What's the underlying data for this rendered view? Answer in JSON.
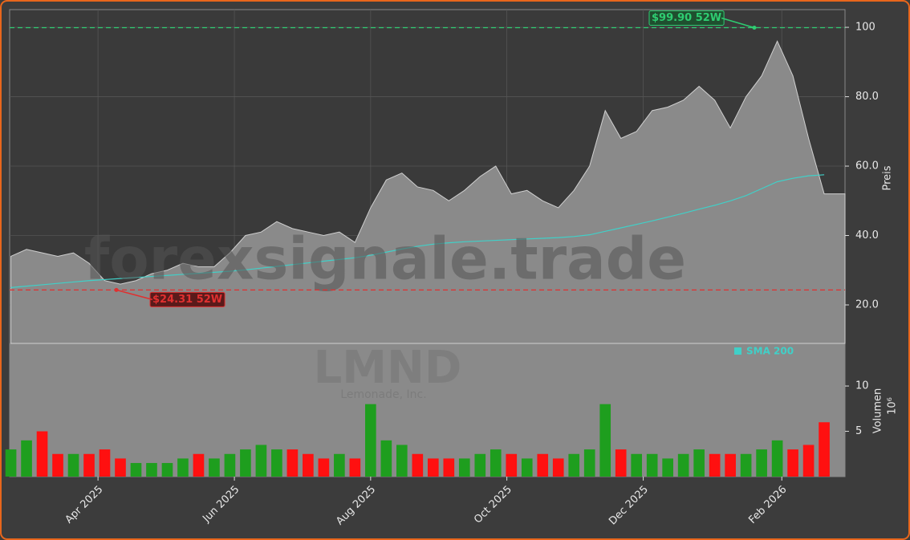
{
  "chart_data": {
    "type": "area",
    "watermark": "forexsignale.trade",
    "ticker": "LMND",
    "company": "Lemonade, Inc.",
    "xlim": [
      -0.08,
      53.33
    ],
    "xticks": [
      {
        "value": 5.57,
        "label": "Apr 2025"
      },
      {
        "value": 14.29,
        "label": "Jun 2025"
      },
      {
        "value": 23.0,
        "label": "Aug 2025"
      },
      {
        "value": 31.71,
        "label": "Oct 2025"
      },
      {
        "value": 40.43,
        "label": "Dec 2025"
      },
      {
        "value": 49.29,
        "label": "Feb 2026"
      }
    ],
    "ylabel": "Preis",
    "ylim": [
      8.9,
      105.1
    ],
    "yticks": [
      {
        "value": 20,
        "label": "20.0"
      },
      {
        "value": 40,
        "label": "40.0"
      },
      {
        "value": 60,
        "label": "60.0"
      },
      {
        "value": 80,
        "label": "80.0"
      },
      100
    ],
    "grid": true,
    "series": [
      {
        "name": "Preis",
        "color": "#8a8a8a",
        "values": [
          34,
          36,
          35,
          34,
          35,
          32,
          27,
          26,
          27,
          29,
          30,
          32,
          31,
          31,
          35,
          40,
          41,
          44,
          42,
          41,
          40,
          41,
          38,
          48,
          56,
          58,
          54,
          53,
          50,
          53,
          57,
          60,
          52,
          53,
          50,
          48,
          53,
          60,
          76,
          68,
          70,
          76,
          77,
          79,
          83,
          79,
          71,
          80,
          86,
          96,
          86,
          68,
          52
        ]
      },
      {
        "name": "SMA 200",
        "color": "#40d0c8",
        "values": [
          25,
          25.4,
          25.8,
          26.2,
          26.6,
          27,
          27.3,
          27.6,
          27.9,
          28.2,
          28.5,
          28.8,
          29.1,
          29.4,
          29.7,
          30.1,
          30.6,
          31.1,
          31.6,
          32.1,
          32.6,
          33.1,
          33.6,
          34.3,
          35.2,
          36.1,
          36.9,
          37.5,
          37.9,
          38.2,
          38.4,
          38.6,
          38.8,
          39,
          39.2,
          39.4,
          39.7,
          40.2,
          41.2,
          42.2,
          43.2,
          44.2,
          45.3,
          46.4,
          47.6,
          48.7,
          50,
          51.5,
          53.5,
          55.5,
          56.5,
          57.2,
          57.5
        ]
      }
    ],
    "annotations": [
      {
        "label": "$99.90 52W",
        "value": 99.9,
        "color": "#2ecc71"
      },
      {
        "label": "$24.31 52W",
        "value": 24.31,
        "color": "#e03030"
      }
    ],
    "volume": {
      "ylabel": "Volumen",
      "offset_label": "10⁶",
      "ylim": [
        0,
        14.7
      ],
      "yticks": [
        5,
        10
      ],
      "up_color": "#1e9e1e",
      "down_color": "#ff1010",
      "values": [
        3,
        4,
        5,
        2.5,
        2.5,
        2.5,
        3,
        2,
        1.5,
        1.5,
        1.5,
        2,
        2.5,
        2,
        2.5,
        3,
        3.5,
        3,
        3,
        2.5,
        2,
        2.5,
        2,
        8,
        4,
        3.5,
        2.5,
        2,
        2,
        2,
        2.5,
        3,
        2.5,
        2,
        2.5,
        2,
        2.5,
        3,
        8,
        3,
        2.5,
        2.5,
        2,
        2.5,
        3,
        2.5,
        2.5,
        2.5,
        3,
        4,
        3,
        3.5,
        6
      ]
    }
  }
}
